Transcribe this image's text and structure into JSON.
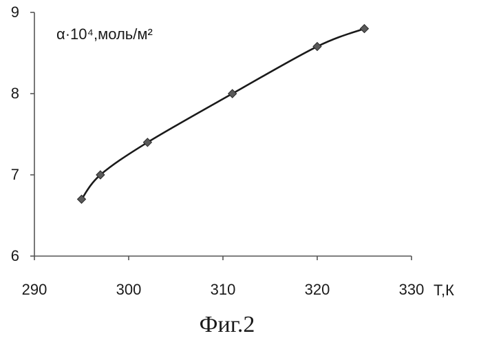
{
  "chart_data": {
    "type": "line",
    "title": "α·10⁴,моль/м²",
    "xlabel": "Т,К",
    "ylabel": "α·10⁴,моль/м²",
    "xlim": [
      290,
      330
    ],
    "ylim": [
      6,
      9
    ],
    "xticks": [
      290,
      300,
      310,
      320,
      330
    ],
    "yticks": [
      6,
      7,
      8,
      9
    ],
    "grid": false,
    "series": [
      {
        "color": "#5a5a5a",
        "marker": "diamond",
        "smooth": true,
        "x": [
          295,
          297,
          302,
          311,
          320,
          325
        ],
        "y": [
          6.7,
          7.0,
          7.4,
          8.0,
          8.58,
          8.8
        ]
      }
    ]
  },
  "caption": "Фиг.2"
}
